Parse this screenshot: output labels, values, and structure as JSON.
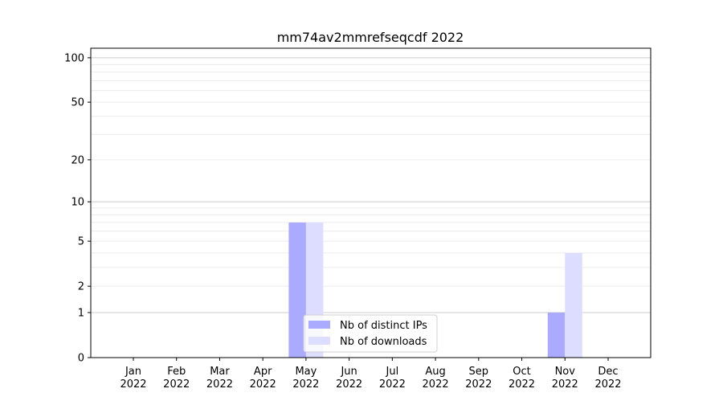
{
  "chart_data": {
    "type": "bar",
    "title": "mm74av2mmrefseqcdf 2022",
    "xlabel": "",
    "ylabel": "",
    "yscale": "log(1+y)",
    "ylim": [
      0,
      116
    ],
    "yticks": [
      0,
      1,
      2,
      5,
      10,
      20,
      50,
      100
    ],
    "grid": true,
    "legend_placement": "lower-center",
    "categories": [
      "Jan\n2022",
      "Feb\n2022",
      "Mar\n2022",
      "Apr\n2022",
      "May\n2022",
      "Jun\n2022",
      "Jul\n2022",
      "Aug\n2022",
      "Sep\n2022",
      "Oct\n2022",
      "Nov\n2022",
      "Dec\n2022"
    ],
    "series": [
      {
        "name": "Nb of distinct IPs",
        "color": "#aaaaff",
        "values": [
          0,
          0,
          0,
          0,
          7,
          0,
          0,
          0,
          0,
          0,
          1,
          0
        ]
      },
      {
        "name": "Nb of downloads",
        "color": "#ddddff",
        "values": [
          0,
          0,
          0,
          0,
          7,
          0,
          0,
          0,
          0,
          0,
          4,
          0
        ]
      }
    ]
  }
}
